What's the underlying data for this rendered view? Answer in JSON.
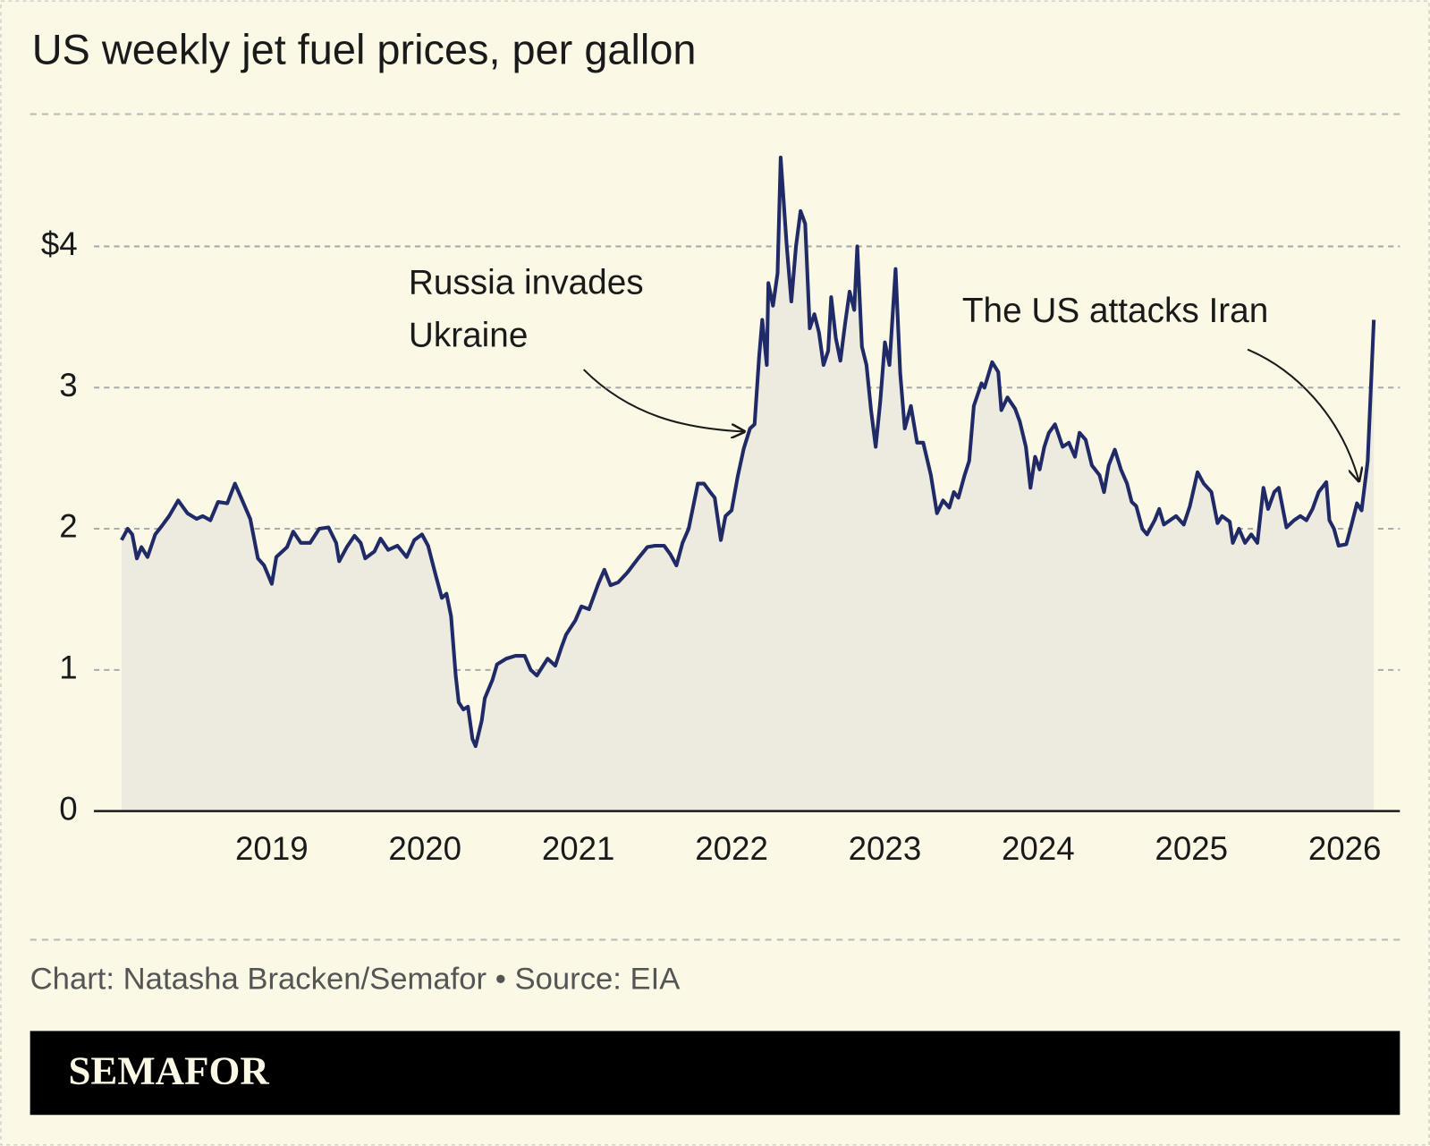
{
  "chart_data": {
    "type": "line",
    "title": "US weekly jet fuel prices, per gallon",
    "x": [
      2018.02,
      2018.06,
      2018.09,
      2018.12,
      2018.15,
      2018.19,
      2018.24,
      2018.29,
      2018.33,
      2018.39,
      2018.45,
      2018.51,
      2018.55,
      2018.6,
      2018.65,
      2018.71,
      2018.76,
      2018.8,
      2018.86,
      2018.91,
      2018.95,
      2019.0,
      2019.03,
      2019.1,
      2019.14,
      2019.19,
      2019.25,
      2019.31,
      2019.37,
      2019.42,
      2019.44,
      2019.49,
      2019.54,
      2019.58,
      2019.61,
      2019.67,
      2019.71,
      2019.76,
      2019.82,
      2019.88,
      2019.93,
      2019.98,
      2020.02,
      2020.07,
      2020.11,
      2020.14,
      2020.17,
      2020.2,
      2020.22,
      2020.25,
      2020.28,
      2020.31,
      2020.33,
      2020.37,
      2020.39,
      2020.44,
      2020.47,
      2020.53,
      2020.59,
      2020.65,
      2020.69,
      2020.73,
      2020.77,
      2020.8,
      2020.85,
      2020.89,
      2020.92,
      2020.98,
      2021.02,
      2021.07,
      2021.13,
      2021.17,
      2021.21,
      2021.26,
      2021.32,
      2021.39,
      2021.45,
      2021.5,
      2021.56,
      2021.6,
      2021.64,
      2021.68,
      2021.72,
      2021.78,
      2021.82,
      2021.86,
      2021.89,
      2021.93,
      2021.96,
      2022.0,
      2022.04,
      2022.08,
      2022.12,
      2022.15,
      2022.18,
      2022.2,
      2022.23,
      2022.24,
      2022.27,
      2022.3,
      2022.32,
      2022.36,
      2022.39,
      2022.42,
      2022.45,
      2022.48,
      2022.51,
      2022.54,
      2022.57,
      2022.6,
      2022.63,
      2022.65,
      2022.68,
      2022.71,
      2022.74,
      2022.77,
      2022.8,
      2022.82,
      2022.85,
      2022.88,
      2022.91,
      2022.94,
      2022.97,
      2023.0,
      2023.03,
      2023.07,
      2023.1,
      2023.13,
      2023.17,
      2023.21,
      2023.25,
      2023.3,
      2023.34,
      2023.38,
      2023.42,
      2023.45,
      2023.48,
      2023.52,
      2023.55,
      2023.58,
      2023.63,
      2023.65,
      2023.7,
      2023.74,
      2023.76,
      2023.8,
      2023.85,
      2023.88,
      2023.92,
      2023.95,
      2023.98,
      2024.01,
      2024.04,
      2024.07,
      2024.11,
      2024.16,
      2024.2,
      2024.24,
      2024.27,
      2024.31,
      2024.35,
      2024.4,
      2024.43,
      2024.46,
      2024.5,
      2024.54,
      2024.58,
      2024.61,
      2024.64,
      2024.68,
      2024.71,
      2024.76,
      2024.79,
      2024.82,
      2024.86,
      2024.9,
      2024.95,
      2024.99,
      2025.04,
      2025.08,
      2025.13,
      2025.17,
      2025.2,
      2025.25,
      2025.27,
      2025.31,
      2025.35,
      2025.39,
      2025.43,
      2025.47,
      2025.5,
      2025.54,
      2025.57,
      2025.62,
      2025.67,
      2025.71,
      2025.75,
      2025.79,
      2025.83,
      2025.88,
      2025.9,
      2025.93,
      2025.96,
      2026.01,
      2026.04,
      2026.08,
      2026.11,
      2026.15,
      2026.19
    ],
    "values": [
      1.92,
      2.0,
      1.96,
      1.79,
      1.87,
      1.8,
      1.96,
      2.03,
      2.09,
      2.2,
      2.11,
      2.07,
      2.09,
      2.06,
      2.19,
      2.18,
      2.32,
      2.22,
      2.07,
      1.79,
      1.74,
      1.61,
      1.8,
      1.87,
      1.98,
      1.9,
      1.9,
      2.0,
      2.01,
      1.9,
      1.77,
      1.87,
      1.95,
      1.9,
      1.79,
      1.84,
      1.93,
      1.85,
      1.88,
      1.8,
      1.92,
      1.96,
      1.88,
      1.67,
      1.51,
      1.54,
      1.38,
      0.96,
      0.77,
      0.72,
      0.74,
      0.51,
      0.46,
      0.64,
      0.8,
      0.93,
      1.04,
      1.08,
      1.1,
      1.1,
      1.0,
      0.96,
      1.03,
      1.08,
      1.03,
      1.16,
      1.25,
      1.35,
      1.45,
      1.43,
      1.61,
      1.71,
      1.6,
      1.62,
      1.69,
      1.79,
      1.87,
      1.88,
      1.88,
      1.82,
      1.74,
      1.9,
      2.0,
      2.32,
      2.32,
      2.26,
      2.22,
      1.92,
      2.09,
      2.13,
      2.37,
      2.57,
      2.71,
      2.74,
      3.22,
      3.48,
      3.16,
      3.74,
      3.58,
      3.81,
      4.63,
      4.0,
      3.61,
      4.0,
      4.25,
      4.16,
      3.42,
      3.52,
      3.39,
      3.16,
      3.26,
      3.64,
      3.35,
      3.19,
      3.45,
      3.68,
      3.55,
      4.0,
      3.29,
      3.16,
      2.84,
      2.58,
      2.9,
      3.32,
      3.16,
      3.84,
      3.1,
      2.71,
      2.87,
      2.61,
      2.61,
      2.38,
      2.11,
      2.2,
      2.15,
      2.26,
      2.22,
      2.38,
      2.48,
      2.87,
      3.03,
      3.0,
      3.18,
      3.11,
      2.84,
      2.93,
      2.85,
      2.76,
      2.58,
      2.29,
      2.51,
      2.42,
      2.58,
      2.68,
      2.74,
      2.58,
      2.61,
      2.51,
      2.68,
      2.63,
      2.45,
      2.38,
      2.26,
      2.45,
      2.56,
      2.42,
      2.32,
      2.19,
      2.16,
      2.0,
      1.96,
      2.06,
      2.14,
      2.03,
      2.06,
      2.09,
      2.03,
      2.16,
      2.4,
      2.32,
      2.26,
      2.04,
      2.09,
      2.05,
      1.9,
      2.0,
      1.9,
      1.96,
      1.9,
      2.29,
      2.14,
      2.26,
      2.29,
      2.01,
      2.06,
      2.09,
      2.06,
      2.14,
      2.26,
      2.33,
      2.06,
      2.0,
      1.88,
      1.89,
      2.01,
      2.18,
      2.13,
      2.48,
      3.48
    ],
    "color": "#1f2a66",
    "area_color": "#edebdf",
    "xlim": [
      2017.84,
      2026.36
    ],
    "xticks": [
      2019,
      2020,
      2021,
      2022,
      2023,
      2024,
      2025,
      2026
    ],
    "ylim": [
      0,
      5
    ],
    "yticks": [
      0,
      1,
      2,
      3,
      {
        "value": 4,
        "label": "$4"
      }
    ],
    "grid": true,
    "annotations": [
      {
        "lines": [
          "Russia invades",
          "Ukraine"
        ]
      },
      {
        "lines": [
          "The US attacks Iran"
        ]
      }
    ]
  },
  "footer": {
    "source": "Chart: Natasha Bracken/Semafor • Source: EIA",
    "brand": "SEMAFOR"
  }
}
